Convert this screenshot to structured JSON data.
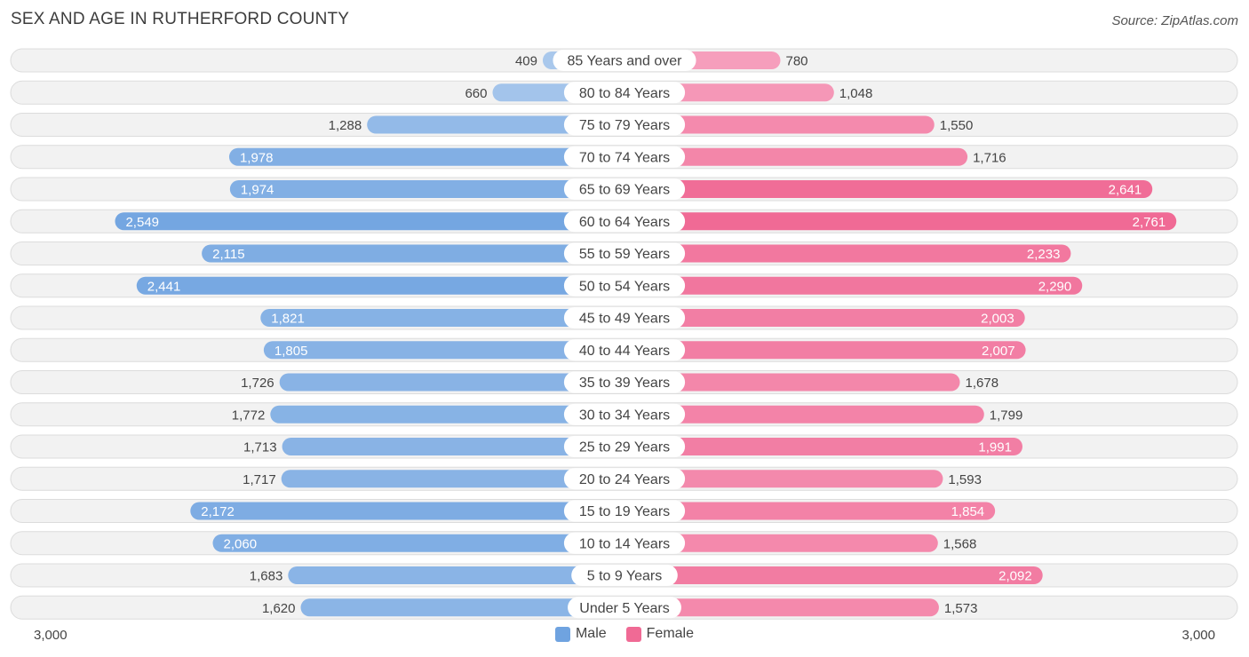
{
  "header": {
    "title": "SEX AND AGE IN RUTHERFORD COUNTY",
    "source": "Source: ZipAtlas.com"
  },
  "axis": {
    "left_label": "3,000",
    "right_label": "3,000"
  },
  "legend": {
    "male_label": "Male",
    "female_label": "Female"
  },
  "colors": {
    "male_dark": "#6fa3e0",
    "male_light": "#a9c8ec",
    "female_dark": "#f06a95",
    "female_light": "#f7a8c3",
    "row_bg": "#f2f2f2",
    "row_border": "#dcdcdc"
  },
  "chart_data": {
    "type": "bar",
    "title": "SEX AND AGE IN RUTHERFORD COUNTY",
    "xlim": [
      -3000,
      3000
    ],
    "categories": [
      "85 Years and over",
      "80 to 84 Years",
      "75 to 79 Years",
      "70 to 74 Years",
      "65 to 69 Years",
      "60 to 64 Years",
      "55 to 59 Years",
      "50 to 54 Years",
      "45 to 49 Years",
      "40 to 44 Years",
      "35 to 39 Years",
      "30 to 34 Years",
      "25 to 29 Years",
      "20 to 24 Years",
      "15 to 19 Years",
      "10 to 14 Years",
      "5 to 9 Years",
      "Under 5 Years"
    ],
    "series": [
      {
        "name": "Male",
        "values": [
          409,
          660,
          1288,
          1978,
          1974,
          2549,
          2115,
          2441,
          1821,
          1805,
          1726,
          1772,
          1713,
          1717,
          2172,
          2060,
          1683,
          1620
        ],
        "labels": [
          "409",
          "660",
          "1,288",
          "1,978",
          "1,974",
          "2,549",
          "2,115",
          "2,441",
          "1,821",
          "1,805",
          "1,726",
          "1,772",
          "1,713",
          "1,717",
          "2,172",
          "2,060",
          "1,683",
          "1,620"
        ]
      },
      {
        "name": "Female",
        "values": [
          780,
          1048,
          1550,
          1716,
          2641,
          2761,
          2233,
          2290,
          2003,
          2007,
          1678,
          1799,
          1991,
          1593,
          1854,
          1568,
          2092,
          1573
        ],
        "labels": [
          "780",
          "1,048",
          "1,550",
          "1,716",
          "2,641",
          "2,761",
          "2,233",
          "2,290",
          "2,003",
          "2,007",
          "1,678",
          "1,799",
          "1,991",
          "1,593",
          "1,854",
          "1,568",
          "2,092",
          "1,573"
        ]
      }
    ]
  }
}
